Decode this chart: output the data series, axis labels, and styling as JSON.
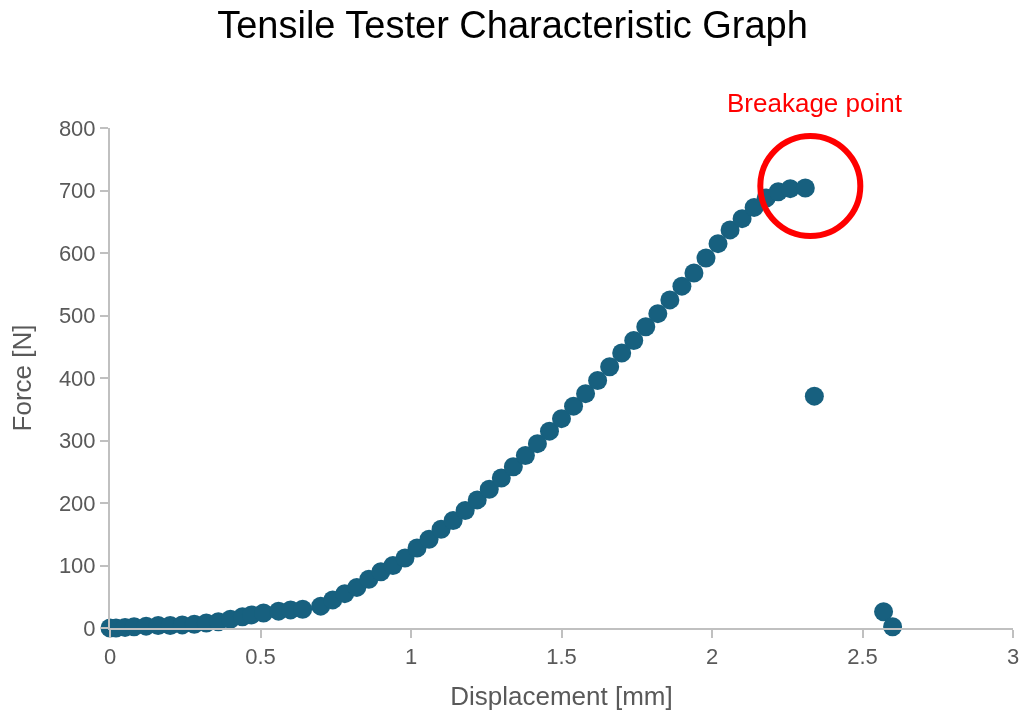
{
  "chart_data": {
    "type": "scatter",
    "title": "Tensile Tester Characteristic Graph",
    "xlabel": "Displacement [mm]",
    "ylabel": "Force [N]",
    "x": [
      0,
      0.02,
      0.05,
      0.08,
      0.12,
      0.16,
      0.2,
      0.24,
      0.28,
      0.32,
      0.36,
      0.4,
      0.44,
      0.47,
      0.51,
      0.56,
      0.6,
      0.64,
      0.7,
      0.74,
      0.78,
      0.82,
      0.86,
      0.9,
      0.94,
      0.98,
      1.02,
      1.06,
      1.1,
      1.14,
      1.18,
      1.22,
      1.26,
      1.3,
      1.34,
      1.38,
      1.42,
      1.46,
      1.5,
      1.54,
      1.58,
      1.62,
      1.66,
      1.7,
      1.74,
      1.78,
      1.82,
      1.86,
      1.9,
      1.94,
      1.98,
      2.02,
      2.06,
      2.1,
      2.14,
      2.18,
      2.22,
      2.26,
      2.31,
      2.34,
      2.57,
      2.6
    ],
    "series": [
      {
        "color": "#17607f",
        "values": [
          0,
          0,
          1,
          2,
          3,
          4,
          4,
          5,
          6,
          8,
          10,
          14,
          18,
          21,
          24,
          27,
          29,
          30,
          35,
          45,
          55,
          65,
          78,
          90,
          100,
          112,
          128,
          142,
          158,
          172,
          188,
          205,
          222,
          240,
          258,
          276,
          295,
          315,
          335,
          355,
          375,
          396,
          418,
          440,
          460,
          482,
          503,
          525,
          547,
          568,
          592,
          615,
          637,
          655,
          673,
          688,
          698,
          703,
          704,
          371,
          26,
          2
        ]
      }
    ],
    "xlim": [
      0,
      3
    ],
    "xticks": [
      0,
      0.5,
      1,
      1.5,
      2,
      2.5,
      3
    ],
    "ylim": [
      0,
      800
    ],
    "yticks": [
      0,
      100,
      200,
      300,
      400,
      500,
      600,
      700,
      800
    ],
    "grid": false,
    "legend": false,
    "marker": "circle",
    "annotations": [
      "Breakage point"
    ]
  }
}
